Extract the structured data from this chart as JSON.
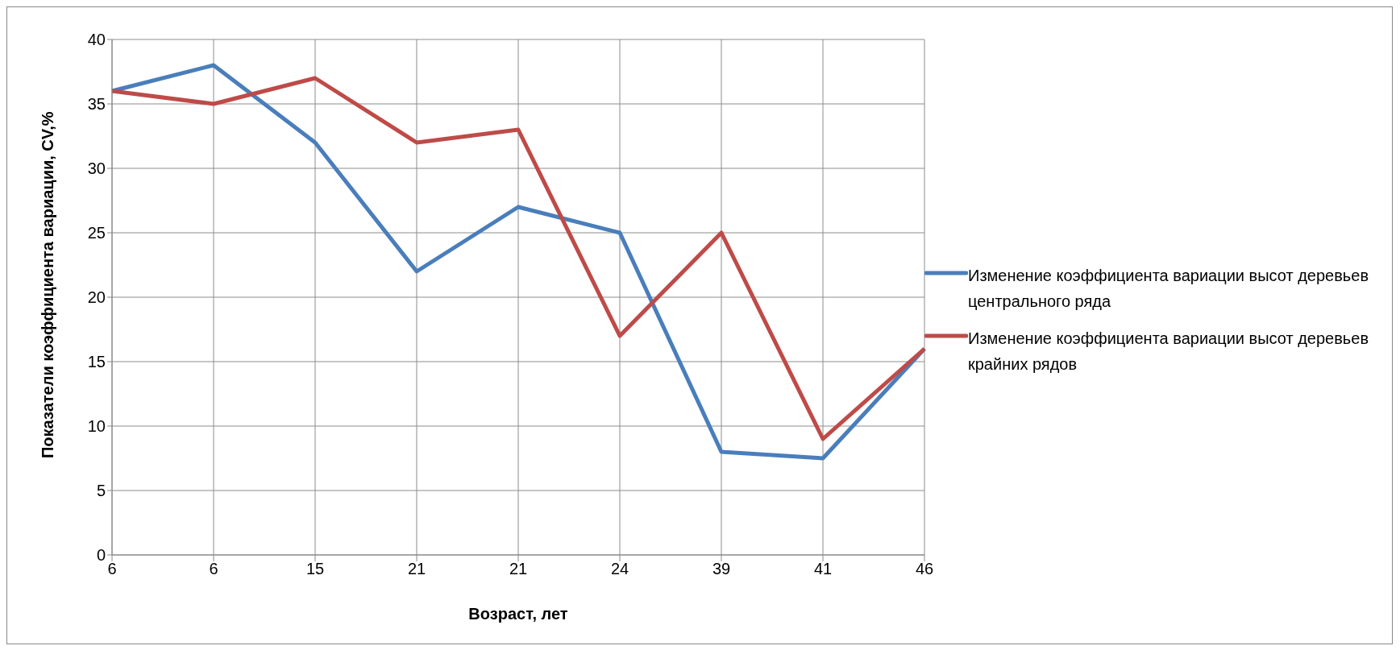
{
  "chart_data": {
    "type": "line",
    "xlabel": "Возраст, лет",
    "ylabel": "Показатели коэффициента вариации, CV,%",
    "categories": [
      "6",
      "6",
      "15",
      "21",
      "21",
      "24",
      "39",
      "41",
      "46"
    ],
    "series": [
      {
        "name": "Изменение коэффициента вариации высот деревьев центрального ряда",
        "color": "#4a7ebb",
        "values": [
          36,
          38,
          32,
          22,
          27,
          25,
          8,
          7.5,
          16
        ]
      },
      {
        "name": "Изменение коэффициента вариации высот деревьев крайних рядов",
        "color": "#be4b48",
        "values": [
          36,
          35,
          37,
          32,
          33,
          17,
          25,
          9,
          16
        ]
      }
    ],
    "ylim": [
      0,
      40
    ],
    "yticks": [
      0,
      5,
      10,
      15,
      20,
      25,
      30,
      35,
      40
    ],
    "grid": true,
    "legend": "right",
    "marker": "none",
    "line_style": "solid"
  }
}
